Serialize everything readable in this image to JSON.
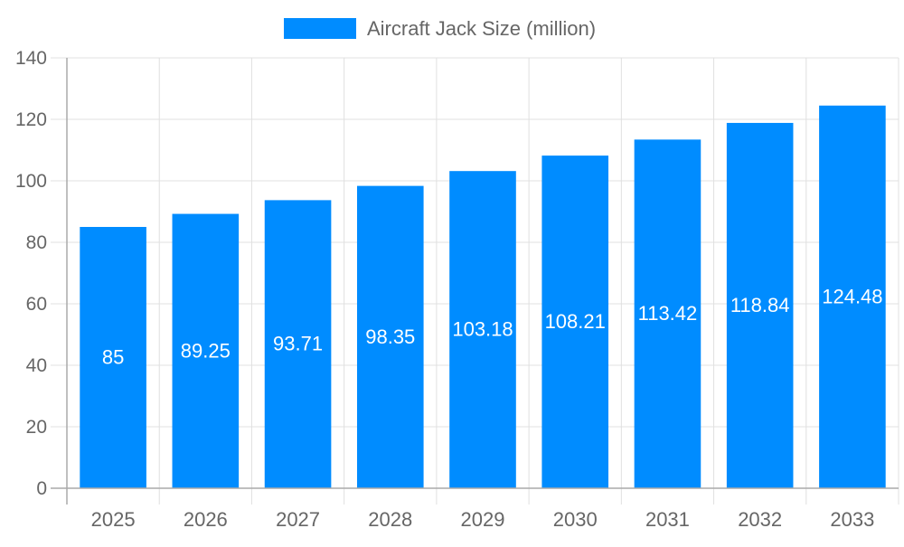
{
  "chart_data": {
    "type": "bar",
    "categories": [
      "2025",
      "2026",
      "2027",
      "2028",
      "2029",
      "2030",
      "2031",
      "2032",
      "2033"
    ],
    "series": [
      {
        "name": "Aircraft Jack Size (million)",
        "values": [
          85,
          89.25,
          93.71,
          98.35,
          103.18,
          108.21,
          113.42,
          118.84,
          124.48
        ],
        "color": "#008cff"
      }
    ],
    "data_labels": [
      "85",
      "89.25",
      "93.71",
      "98.35",
      "103.18",
      "108.21",
      "113.42",
      "118.84",
      "124.48"
    ],
    "ylim": [
      0,
      140
    ],
    "yticks": [
      0,
      20,
      40,
      60,
      80,
      100,
      120,
      140
    ],
    "grid": true,
    "legend_position": "top"
  }
}
